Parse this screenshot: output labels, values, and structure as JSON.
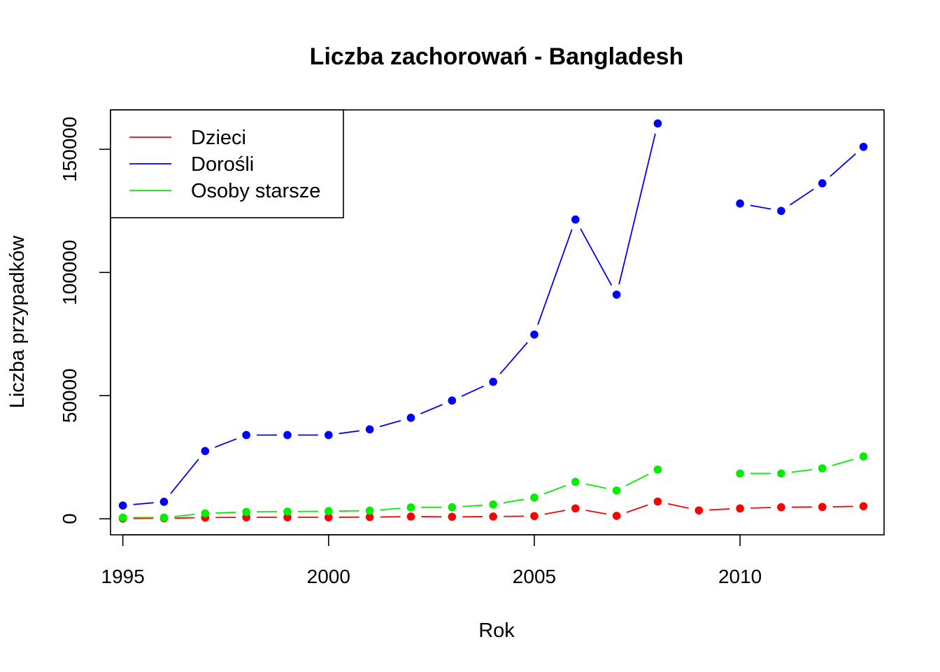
{
  "chart_data": {
    "type": "line",
    "title": "Liczba zachorowań -  Bangladesh",
    "xlabel": "Rok",
    "ylabel": "Liczba przypadków",
    "xlim": [
      1994.7,
      2013.5
    ],
    "ylim": [
      -6500,
      166000
    ],
    "x_ticks": [
      1995,
      2000,
      2005,
      2010
    ],
    "y_ticks": [
      0,
      50000,
      100000,
      150000
    ],
    "grid": false,
    "legend_position": "top-left",
    "x": [
      1995,
      1996,
      1997,
      1998,
      1999,
      2000,
      2001,
      2002,
      2003,
      2004,
      2005,
      2006,
      2007,
      2008,
      2009,
      2010,
      2011,
      2012,
      2013
    ],
    "series": [
      {
        "name": "Dzieci",
        "color": "#ff0000",
        "values": [
          100,
          200,
          500,
          600,
          600,
          600,
          700,
          900,
          800,
          900,
          1100,
          4200,
          1200,
          7000,
          3400,
          4200,
          4700,
          4800,
          5100
        ]
      },
      {
        "name": "Dorośli",
        "color": "#0000ff",
        "values": [
          5400,
          6900,
          27500,
          34000,
          34000,
          34000,
          36300,
          41000,
          48000,
          55600,
          74800,
          121500,
          91000,
          160500,
          null,
          128000,
          125000,
          136200,
          151000
        ]
      },
      {
        "name": "Osoby starsze",
        "color": "#00ee00",
        "values": [
          500,
          500,
          2200,
          2800,
          2900,
          3100,
          3300,
          4600,
          4700,
          5800,
          8600,
          15000,
          11500,
          20000,
          null,
          18400,
          18400,
          20500,
          25300
        ]
      }
    ]
  }
}
